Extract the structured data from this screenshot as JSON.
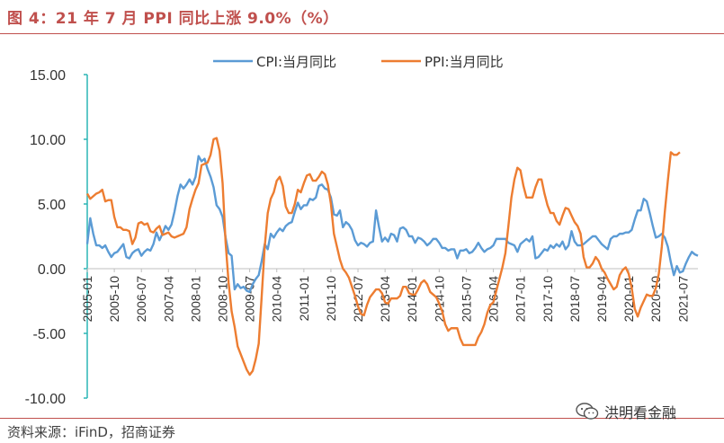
{
  "figure": {
    "title": "图 4：21 年 7 月 PPI 同比上涨 9.0%（%）",
    "source": "资料来源：iFinD，招商证券",
    "watermark": "洪明看金融"
  },
  "colors": {
    "cpi": "#5b9bd5",
    "ppi": "#ed7d31",
    "axis": "#2bb5b5",
    "title": "#c0504d"
  },
  "chart_data": {
    "type": "line",
    "title": "图 4：21 年 7 月 PPI 同比上涨 9.0%（%）",
    "xlabel": "",
    "ylabel": "%",
    "ylim": [
      -10,
      15
    ],
    "yticks": [
      "15.00",
      "10.00",
      "5.00",
      "0.00",
      "-5.00",
      "-10.00"
    ],
    "yticks_values": [
      15,
      10,
      5,
      0,
      -5,
      -10
    ],
    "xticks": [
      "2005-01",
      "2005-10",
      "2006-07",
      "2007-04",
      "2008-01",
      "2008-10",
      "2009-07",
      "2010-04",
      "2011-01",
      "2011-10",
      "2012-07",
      "2013-04",
      "2014-01",
      "2014-10",
      "2015-07",
      "2016-04",
      "2017-01",
      "2017-10",
      "2018-07",
      "2019-04",
      "2020-01",
      "2020-10",
      "2021-07"
    ],
    "legend_position": "top-center",
    "grid": false,
    "x_start": "2005-01",
    "x_end": "2021-07",
    "series": [
      {
        "name": "CPI:当月同比",
        "key": "cpi",
        "values": [
          1.9,
          3.9,
          2.7,
          1.8,
          1.8,
          1.6,
          1.8,
          1.3,
          0.9,
          1.2,
          1.3,
          1.6,
          1.9,
          0.9,
          0.8,
          1.2,
          1.4,
          1.5,
          1.0,
          1.3,
          1.5,
          1.4,
          1.9,
          2.8,
          2.2,
          2.7,
          3.3,
          3.0,
          3.4,
          4.4,
          5.6,
          6.5,
          6.2,
          6.5,
          6.9,
          6.5,
          7.1,
          8.7,
          8.3,
          8.5,
          7.7,
          7.1,
          6.3,
          4.9,
          4.6,
          4.0,
          2.4,
          1.2,
          1.0,
          -1.6,
          -1.2,
          -1.5,
          -1.4,
          -1.7,
          -1.8,
          -1.2,
          -0.8,
          -0.5,
          0.6,
          1.9,
          1.5,
          2.7,
          2.4,
          2.8,
          3.1,
          2.9,
          3.3,
          3.5,
          3.6,
          4.4,
          5.1,
          4.6,
          4.9,
          4.9,
          5.4,
          5.3,
          5.5,
          6.4,
          6.5,
          6.2,
          6.1,
          5.5,
          4.2,
          4.1,
          4.5,
          3.2,
          3.6,
          3.4,
          3.0,
          2.2,
          1.8,
          2.0,
          1.9,
          1.7,
          2.0,
          2.1,
          4.5,
          3.2,
          2.1,
          2.4,
          2.1,
          2.7,
          2.6,
          2.1,
          3.1,
          3.2,
          3.0,
          2.5,
          2.5,
          2.0,
          2.4,
          2.3,
          2.1,
          1.8,
          2.0,
          2.3,
          2.3,
          2.0,
          1.6,
          1.6,
          1.4,
          1.5,
          1.5,
          0.8,
          1.4,
          1.4,
          1.5,
          1.2,
          1.3,
          1.6,
          2.0,
          1.6,
          1.3,
          1.5,
          1.6,
          1.8,
          2.3,
          2.3,
          2.3,
          2.3,
          2.0,
          1.9,
          1.8,
          1.3,
          1.9,
          2.1,
          2.3,
          2.1,
          2.5,
          0.8,
          0.9,
          1.2,
          1.5,
          1.4,
          1.8,
          1.6,
          1.9,
          1.7,
          2.1,
          1.5,
          1.8,
          2.9,
          2.1,
          1.8,
          1.8,
          1.9,
          2.1,
          2.3,
          2.5,
          2.5,
          2.2,
          1.9,
          1.7,
          1.5,
          2.3,
          2.5,
          2.5,
          2.7,
          2.7,
          2.8,
          2.8,
          3.0,
          3.8,
          4.5,
          4.5,
          5.4,
          5.2,
          4.3,
          3.3,
          2.4,
          2.5,
          2.7,
          2.4,
          1.7,
          0.5,
          -0.5,
          0.2,
          -0.3,
          -0.2,
          0.4,
          0.9,
          1.3,
          1.1,
          1.0
        ]
      },
      {
        "name": "PPI:当月同比",
        "key": "ppi",
        "values": [
          5.8,
          5.4,
          5.6,
          5.8,
          5.9,
          6.1,
          5.2,
          5.3,
          5.3,
          4.0,
          3.2,
          3.2,
          3.0,
          3.0,
          2.9,
          1.9,
          2.4,
          3.5,
          3.6,
          3.4,
          3.5,
          2.9,
          2.8,
          3.1,
          3.3,
          2.6,
          2.7,
          2.8,
          2.5,
          2.4,
          2.5,
          2.6,
          2.7,
          3.2,
          4.6,
          5.4,
          6.1,
          6.6,
          8.0,
          8.1,
          8.2,
          8.8,
          10.0,
          10.1,
          9.1,
          6.6,
          2.0,
          -1.1,
          -3.3,
          -4.5,
          -6.0,
          -6.6,
          -7.2,
          -7.8,
          -8.2,
          -7.9,
          -7.0,
          -5.8,
          -2.1,
          1.7,
          4.3,
          5.4,
          5.9,
          6.8,
          7.1,
          6.4,
          4.8,
          4.3,
          4.3,
          5.0,
          6.1,
          5.9,
          6.6,
          7.2,
          7.3,
          6.8,
          6.8,
          7.1,
          7.5,
          7.3,
          6.5,
          5.0,
          2.7,
          1.7,
          0.7,
          0.0,
          -0.3,
          -0.7,
          -1.4,
          -2.1,
          -2.9,
          -3.5,
          -3.6,
          -2.8,
          -2.2,
          -1.9,
          -1.6,
          -1.6,
          -1.9,
          -2.6,
          -2.7,
          -2.3,
          -2.3,
          -2.3,
          -2.1,
          -1.4,
          -1.4,
          -1.9,
          -2.0,
          -2.0,
          -1.6,
          -1.1,
          -0.9,
          -1.2,
          -1.8,
          -2.0,
          -2.2,
          -2.7,
          -3.3,
          -4.3,
          -4.8,
          -4.6,
          -4.6,
          -4.6,
          -5.4,
          -5.9,
          -5.9,
          -5.9,
          -5.9,
          -5.9,
          -5.3,
          -4.9,
          -4.3,
          -3.4,
          -2.8,
          -2.6,
          -1.7,
          -0.8,
          0.1,
          1.2,
          3.3,
          5.5,
          6.9,
          7.8,
          7.6,
          6.4,
          5.5,
          5.5,
          5.5,
          6.3,
          6.9,
          6.9,
          5.8,
          4.9,
          4.3,
          4.3,
          3.7,
          3.4,
          4.1,
          4.7,
          4.6,
          4.1,
          3.6,
          3.3,
          2.7,
          0.9,
          0.1,
          0.1,
          0.4,
          0.9,
          0.6,
          0.0,
          -0.3,
          -0.8,
          -1.2,
          -1.6,
          -1.4,
          -0.5,
          -0.1,
          0.1,
          -0.4,
          -1.5,
          -3.1,
          -3.7,
          -3.0,
          -2.5,
          -2.0,
          -2.1,
          -2.1,
          -1.5,
          -0.4,
          1.7,
          4.4,
          6.8,
          9.0,
          8.8,
          8.8,
          9.0
        ]
      }
    ]
  }
}
